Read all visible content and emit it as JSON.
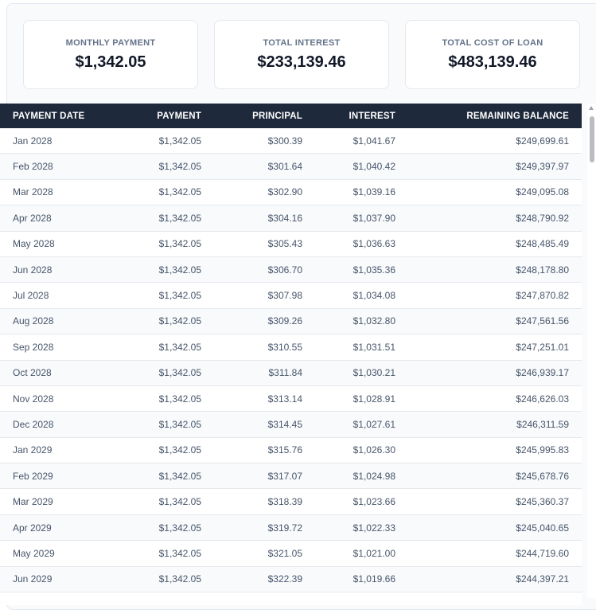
{
  "summary": {
    "monthly_payment": {
      "label": "MONTHLY PAYMENT",
      "value": "$1,342.05"
    },
    "total_interest": {
      "label": "TOTAL INTEREST",
      "value": "$233,139.46"
    },
    "total_cost": {
      "label": "TOTAL COST OF LOAN",
      "value": "$483,139.46"
    }
  },
  "table": {
    "headers": {
      "date": "PAYMENT DATE",
      "payment": "PAYMENT",
      "principal": "PRINCIPAL",
      "interest": "INTEREST",
      "balance": "REMAINING BALANCE"
    },
    "rows": [
      {
        "date": "Jan 2028",
        "payment": "$1,342.05",
        "principal": "$300.39",
        "interest": "$1,041.67",
        "balance": "$249,699.61"
      },
      {
        "date": "Feb 2028",
        "payment": "$1,342.05",
        "principal": "$301.64",
        "interest": "$1,040.42",
        "balance": "$249,397.97"
      },
      {
        "date": "Mar 2028",
        "payment": "$1,342.05",
        "principal": "$302.90",
        "interest": "$1,039.16",
        "balance": "$249,095.08"
      },
      {
        "date": "Apr 2028",
        "payment": "$1,342.05",
        "principal": "$304.16",
        "interest": "$1,037.90",
        "balance": "$248,790.92"
      },
      {
        "date": "May 2028",
        "payment": "$1,342.05",
        "principal": "$305.43",
        "interest": "$1,036.63",
        "balance": "$248,485.49"
      },
      {
        "date": "Jun 2028",
        "payment": "$1,342.05",
        "principal": "$306.70",
        "interest": "$1,035.36",
        "balance": "$248,178.80"
      },
      {
        "date": "Jul 2028",
        "payment": "$1,342.05",
        "principal": "$307.98",
        "interest": "$1,034.08",
        "balance": "$247,870.82"
      },
      {
        "date": "Aug 2028",
        "payment": "$1,342.05",
        "principal": "$309.26",
        "interest": "$1,032.80",
        "balance": "$247,561.56"
      },
      {
        "date": "Sep 2028",
        "payment": "$1,342.05",
        "principal": "$310.55",
        "interest": "$1,031.51",
        "balance": "$247,251.01"
      },
      {
        "date": "Oct 2028",
        "payment": "$1,342.05",
        "principal": "$311.84",
        "interest": "$1,030.21",
        "balance": "$246,939.17"
      },
      {
        "date": "Nov 2028",
        "payment": "$1,342.05",
        "principal": "$313.14",
        "interest": "$1,028.91",
        "balance": "$246,626.03"
      },
      {
        "date": "Dec 2028",
        "payment": "$1,342.05",
        "principal": "$314.45",
        "interest": "$1,027.61",
        "balance": "$246,311.59"
      },
      {
        "date": "Jan 2029",
        "payment": "$1,342.05",
        "principal": "$315.76",
        "interest": "$1,026.30",
        "balance": "$245,995.83"
      },
      {
        "date": "Feb 2029",
        "payment": "$1,342.05",
        "principal": "$317.07",
        "interest": "$1,024.98",
        "balance": "$245,678.76"
      },
      {
        "date": "Mar 2029",
        "payment": "$1,342.05",
        "principal": "$318.39",
        "interest": "$1,023.66",
        "balance": "$245,360.37"
      },
      {
        "date": "Apr 2029",
        "payment": "$1,342.05",
        "principal": "$319.72",
        "interest": "$1,022.33",
        "balance": "$245,040.65"
      },
      {
        "date": "May 2029",
        "payment": "$1,342.05",
        "principal": "$321.05",
        "interest": "$1,021.00",
        "balance": "$244,719.60"
      },
      {
        "date": "Jun 2029",
        "payment": "$1,342.05",
        "principal": "$322.39",
        "interest": "$1,019.66",
        "balance": "$244,397.21"
      }
    ]
  },
  "icons": {
    "scroll_up": "scroll-up-arrow-icon"
  }
}
